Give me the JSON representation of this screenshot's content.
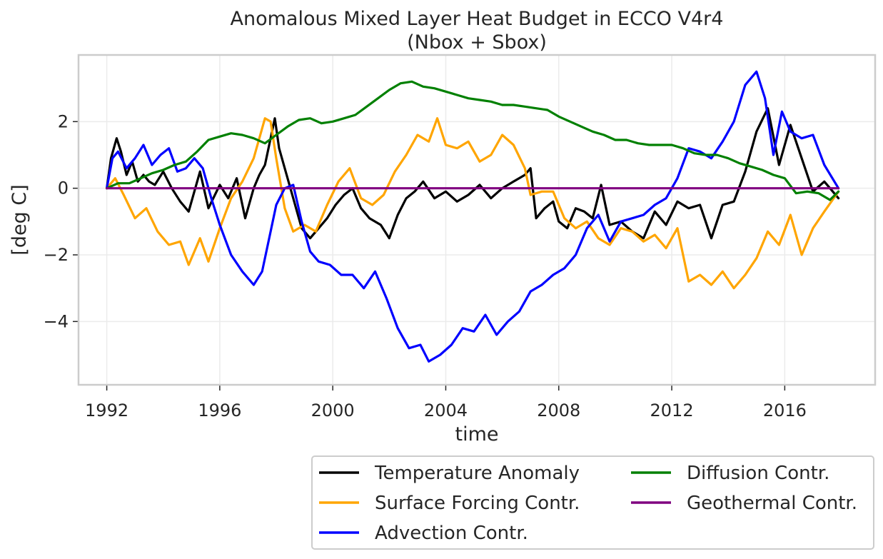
{
  "chart_data": {
    "type": "line",
    "title": "Anomalous Mixed Layer Heat Budget in ECCO V4r4",
    "subtitle": "(Nbox + Sbox)",
    "xlabel": "time",
    "ylabel": "[deg C]",
    "xlim": [
      1991.0,
      2019.2
    ],
    "ylim": [
      -5.9,
      4.0
    ],
    "xticks": [
      1992,
      1996,
      2000,
      2004,
      2008,
      2012,
      2016
    ],
    "xtick_labels": [
      "1992",
      "1996",
      "2000",
      "2004",
      "2008",
      "2012",
      "2016"
    ],
    "yticks": [
      -4,
      -2,
      0,
      2
    ],
    "ytick_labels": [
      "−4",
      "−2",
      "0",
      "2"
    ],
    "grid": true,
    "legend_position": "below-right",
    "series": [
      {
        "name": "Temperature Anomaly",
        "color": "#000000",
        "x": [
          1992.0,
          1992.15,
          1992.35,
          1992.5,
          1992.7,
          1992.9,
          1993.1,
          1993.3,
          1993.5,
          1993.7,
          1994.0,
          1994.3,
          1994.6,
          1994.9,
          1995.3,
          1995.6,
          1996.0,
          1996.3,
          1996.6,
          1996.9,
          1997.2,
          1997.4,
          1997.6,
          1997.8,
          1997.95,
          1998.1,
          1998.3,
          1998.6,
          1998.9,
          1999.2,
          1999.5,
          1999.8,
          2000.1,
          2000.4,
          2000.7,
          2001.0,
          2001.3,
          2001.7,
          2002.0,
          2002.3,
          2002.6,
          2002.9,
          2003.2,
          2003.6,
          2004.0,
          2004.4,
          2004.8,
          2005.2,
          2005.6,
          2006.0,
          2006.4,
          2006.8,
          2007.0,
          2007.2,
          2007.5,
          2007.8,
          2008.0,
          2008.3,
          2008.6,
          2008.9,
          2009.2,
          2009.5,
          2009.8,
          2010.2,
          2010.6,
          2011.0,
          2011.4,
          2011.8,
          2012.2,
          2012.6,
          2013.0,
          2013.4,
          2013.8,
          2014.2,
          2014.6,
          2015.0,
          2015.4,
          2015.8,
          2016.2,
          2016.6,
          2017.0,
          2017.4,
          2017.9
        ],
        "y": [
          0.0,
          0.9,
          1.5,
          1.1,
          0.4,
          0.8,
          0.2,
          0.4,
          0.2,
          0.1,
          0.5,
          0.0,
          -0.4,
          -0.7,
          0.5,
          -0.6,
          0.1,
          -0.3,
          0.3,
          -0.9,
          0.0,
          0.4,
          0.7,
          1.5,
          2.1,
          1.2,
          0.6,
          -0.3,
          -1.2,
          -1.5,
          -1.2,
          -0.9,
          -0.5,
          -0.2,
          0.0,
          -0.6,
          -0.9,
          -1.1,
          -1.5,
          -0.8,
          -0.3,
          -0.1,
          0.2,
          -0.3,
          -0.1,
          -0.4,
          -0.2,
          0.1,
          -0.3,
          0.0,
          0.2,
          0.4,
          0.6,
          -0.9,
          -0.6,
          -0.4,
          -1.0,
          -1.2,
          -0.6,
          -0.7,
          -0.9,
          0.1,
          -1.1,
          -1.0,
          -1.3,
          -1.5,
          -0.7,
          -1.1,
          -0.4,
          -0.6,
          -0.5,
          -1.5,
          -0.5,
          -0.4,
          0.5,
          1.7,
          2.4,
          0.7,
          1.9,
          0.9,
          -0.1,
          0.2,
          -0.3
        ]
      },
      {
        "name": "Surface Forcing Contr.",
        "color": "#ffa500",
        "x": [
          1992.0,
          1992.3,
          1992.6,
          1993.0,
          1993.4,
          1993.8,
          1994.2,
          1994.6,
          1994.9,
          1995.3,
          1995.6,
          1996.0,
          1996.4,
          1996.8,
          1997.2,
          1997.6,
          1997.8,
          1998.0,
          1998.3,
          1998.6,
          1999.0,
          1999.4,
          1999.8,
          2000.2,
          2000.6,
          2001.0,
          2001.4,
          2001.8,
          2002.2,
          2002.6,
          2003.0,
          2003.4,
          2003.7,
          2004.0,
          2004.4,
          2004.8,
          2005.2,
          2005.6,
          2006.0,
          2006.4,
          2006.8,
          2007.0,
          2007.4,
          2007.8,
          2008.2,
          2008.6,
          2009.0,
          2009.4,
          2009.8,
          2010.2,
          2010.6,
          2011.0,
          2011.4,
          2011.8,
          2012.2,
          2012.6,
          2013.0,
          2013.4,
          2013.8,
          2014.2,
          2014.6,
          2015.0,
          2015.4,
          2015.8,
          2016.2,
          2016.6,
          2017.0,
          2017.4,
          2017.9
        ],
        "y": [
          0.0,
          0.3,
          -0.2,
          -0.9,
          -0.6,
          -1.3,
          -1.7,
          -1.6,
          -2.3,
          -1.5,
          -2.2,
          -1.2,
          -0.3,
          0.2,
          0.9,
          2.1,
          2.0,
          0.9,
          -0.6,
          -1.3,
          -1.1,
          -1.3,
          -0.5,
          0.2,
          0.6,
          -0.3,
          -0.5,
          -0.2,
          0.5,
          1.0,
          1.6,
          1.4,
          2.1,
          1.3,
          1.2,
          1.4,
          0.8,
          1.0,
          1.6,
          1.3,
          0.6,
          -0.2,
          -0.1,
          -0.1,
          -0.9,
          -1.2,
          -1.0,
          -1.5,
          -1.7,
          -1.2,
          -1.3,
          -1.6,
          -1.4,
          -1.8,
          -1.2,
          -2.8,
          -2.6,
          -2.9,
          -2.5,
          -3.0,
          -2.6,
          -2.1,
          -1.3,
          -1.7,
          -0.8,
          -2.0,
          -1.2,
          -0.7,
          -0.1
        ]
      },
      {
        "name": "Advection Contr.",
        "color": "#0000ff",
        "x": [
          1992.0,
          1992.2,
          1992.4,
          1992.7,
          1993.0,
          1993.3,
          1993.6,
          1993.9,
          1994.2,
          1994.5,
          1994.8,
          1995.1,
          1995.4,
          1995.7,
          1996.0,
          1996.4,
          1996.8,
          1997.2,
          1997.5,
          1997.8,
          1998.0,
          1998.3,
          1998.6,
          1998.9,
          1999.2,
          1999.5,
          1999.9,
          2000.3,
          2000.7,
          2001.1,
          2001.5,
          2001.9,
          2002.3,
          2002.7,
          2003.1,
          2003.4,
          2003.8,
          2004.2,
          2004.6,
          2005.0,
          2005.4,
          2005.8,
          2006.2,
          2006.6,
          2007.0,
          2007.4,
          2007.8,
          2008.2,
          2008.6,
          2009.0,
          2009.4,
          2009.8,
          2010.2,
          2010.6,
          2011.0,
          2011.4,
          2011.8,
          2012.2,
          2012.6,
          2013.0,
          2013.4,
          2013.8,
          2014.2,
          2014.6,
          2015.0,
          2015.3,
          2015.6,
          2015.9,
          2016.2,
          2016.6,
          2017.0,
          2017.4,
          2017.9
        ],
        "y": [
          0.0,
          0.9,
          1.1,
          0.6,
          0.9,
          1.3,
          0.7,
          1.0,
          1.2,
          0.5,
          0.6,
          0.9,
          0.6,
          -0.3,
          -1.1,
          -2.0,
          -2.5,
          -2.9,
          -2.5,
          -1.3,
          -0.5,
          0.0,
          0.1,
          -1.0,
          -1.9,
          -2.2,
          -2.3,
          -2.6,
          -2.6,
          -3.0,
          -2.5,
          -3.3,
          -4.2,
          -4.8,
          -4.7,
          -5.2,
          -5.0,
          -4.7,
          -4.2,
          -4.3,
          -3.8,
          -4.4,
          -4.0,
          -3.7,
          -3.1,
          -2.9,
          -2.6,
          -2.4,
          -2.0,
          -1.2,
          -0.8,
          -1.6,
          -1.0,
          -0.9,
          -0.8,
          -0.5,
          -0.3,
          0.3,
          1.2,
          1.1,
          0.9,
          1.4,
          2.0,
          3.1,
          3.5,
          2.7,
          1.0,
          2.3,
          1.7,
          1.5,
          1.6,
          0.7,
          0.0
        ]
      },
      {
        "name": "Diffusion Contr.",
        "color": "#008000",
        "x": [
          1992.0,
          1992.4,
          1992.8,
          1993.2,
          1993.6,
          1994.0,
          1994.4,
          1994.8,
          1995.2,
          1995.6,
          1996.0,
          1996.4,
          1996.8,
          1997.2,
          1997.6,
          1998.0,
          1998.4,
          1998.8,
          1999.2,
          1999.6,
          2000.0,
          2000.4,
          2000.8,
          2001.2,
          2001.6,
          2002.0,
          2002.4,
          2002.8,
          2003.2,
          2003.6,
          2004.0,
          2004.4,
          2004.8,
          2005.2,
          2005.6,
          2006.0,
          2006.4,
          2006.8,
          2007.2,
          2007.6,
          2008.0,
          2008.4,
          2008.8,
          2009.2,
          2009.6,
          2010.0,
          2010.4,
          2010.8,
          2011.2,
          2011.6,
          2012.0,
          2012.4,
          2012.8,
          2013.2,
          2013.6,
          2014.0,
          2014.4,
          2014.8,
          2015.2,
          2015.6,
          2016.0,
          2016.4,
          2016.8,
          2017.2,
          2017.6,
          2017.9
        ],
        "y": [
          0.0,
          0.15,
          0.15,
          0.3,
          0.45,
          0.55,
          0.7,
          0.8,
          1.1,
          1.45,
          1.55,
          1.65,
          1.6,
          1.5,
          1.35,
          1.6,
          1.85,
          2.05,
          2.1,
          1.95,
          2.0,
          2.1,
          2.2,
          2.45,
          2.7,
          2.95,
          3.15,
          3.2,
          3.05,
          3.0,
          2.9,
          2.8,
          2.7,
          2.65,
          2.6,
          2.5,
          2.5,
          2.45,
          2.4,
          2.35,
          2.15,
          2.0,
          1.85,
          1.7,
          1.6,
          1.45,
          1.45,
          1.35,
          1.3,
          1.3,
          1.3,
          1.2,
          1.05,
          1.0,
          1.0,
          0.9,
          0.75,
          0.65,
          0.55,
          0.4,
          0.3,
          -0.15,
          -0.1,
          -0.15,
          -0.35,
          -0.1
        ]
      },
      {
        "name": "Geothermal Contr.",
        "color": "#800080",
        "x": [
          1992.0,
          2017.9
        ],
        "y": [
          0.0,
          0.0
        ]
      }
    ]
  }
}
